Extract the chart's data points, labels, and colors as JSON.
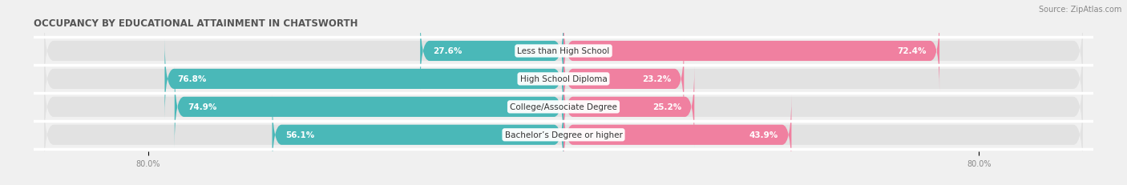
{
  "title": "OCCUPANCY BY EDUCATIONAL ATTAINMENT IN CHATSWORTH",
  "source": "Source: ZipAtlas.com",
  "categories": [
    "Less than High School",
    "High School Diploma",
    "College/Associate Degree",
    "Bachelor’s Degree or higher"
  ],
  "owner_pct": [
    27.6,
    76.8,
    74.9,
    56.1
  ],
  "renter_pct": [
    72.4,
    23.2,
    25.2,
    43.9
  ],
  "owner_color": "#4ab8b8",
  "renter_color": "#f080a0",
  "bg_color": "#f0f0f0",
  "bar_bg_color": "#e2e2e2",
  "row_sep_color": "#ffffff",
  "title_fontsize": 8.5,
  "label_fontsize": 7.5,
  "pct_fontsize": 7.5,
  "tick_fontsize": 7,
  "source_fontsize": 7,
  "x_max": 100.0,
  "bar_height": 0.72
}
